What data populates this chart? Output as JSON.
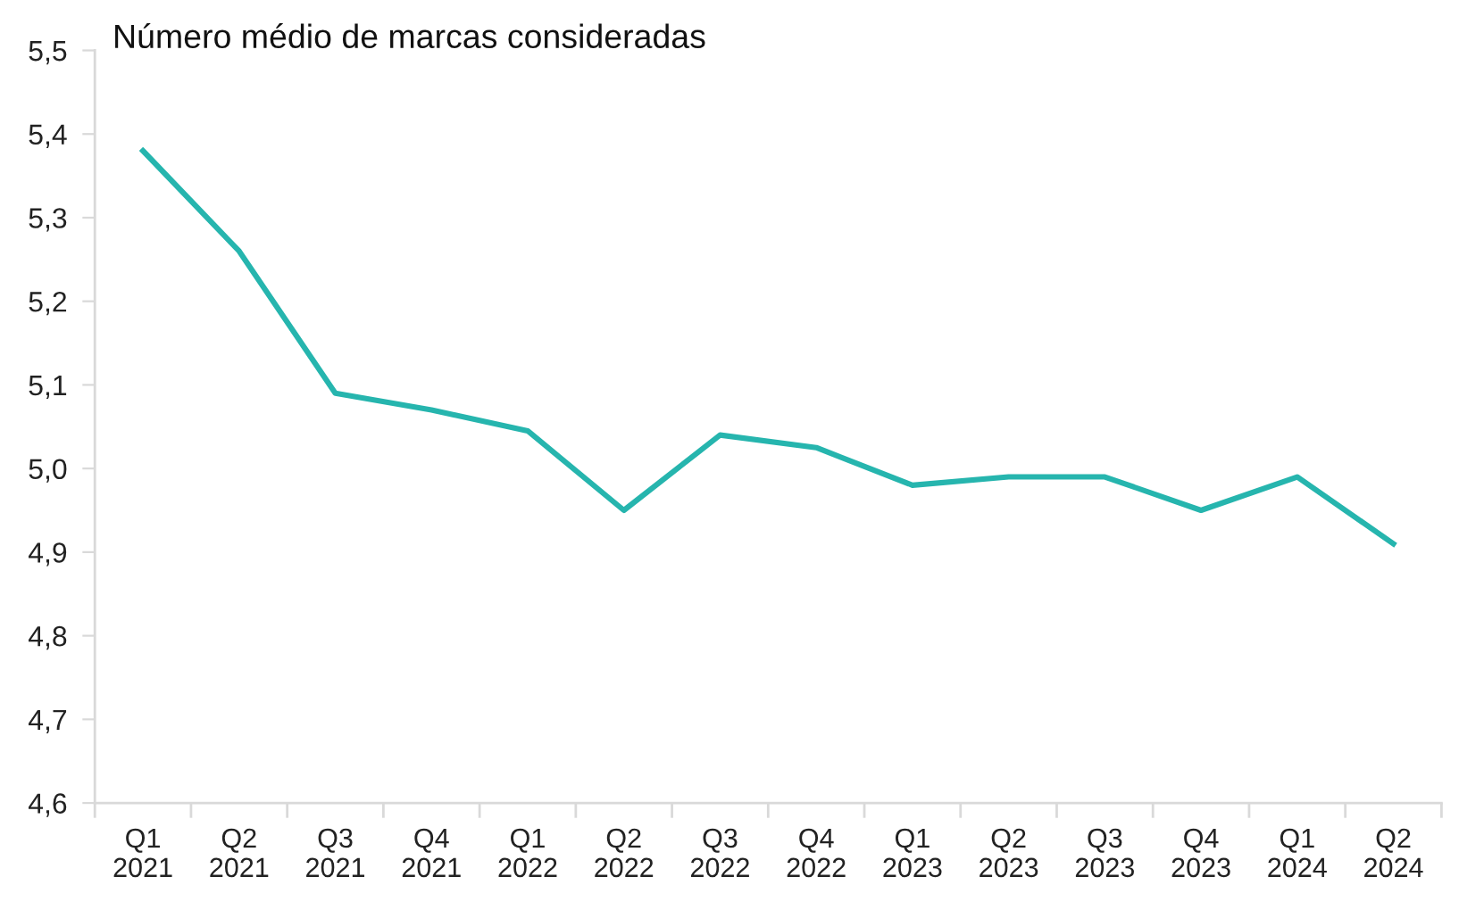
{
  "chart_data": {
    "type": "line",
    "title": "Número médio de marcas consideradas",
    "categories": [
      "Q1\n2021",
      "Q2\n2021",
      "Q3\n2021",
      "Q4\n2021",
      "Q1\n2022",
      "Q2\n2022",
      "Q3\n2022",
      "Q4\n2022",
      "Q1\n2023",
      "Q2\n2023",
      "Q3\n2023",
      "Q4\n2023",
      "Q1\n2024",
      "Q2\n2024"
    ],
    "series": [
      {
        "color": "#26b5ae",
        "values": [
          5.38,
          5.26,
          5.09,
          5.07,
          5.045,
          4.95,
          5.04,
          5.025,
          4.98,
          4.99,
          4.99,
          4.95,
          4.99,
          4.91
        ]
      }
    ],
    "ylim": [
      4.6,
      5.5
    ],
    "yticks": [
      {
        "value": 4.6,
        "label": "4,6"
      },
      {
        "value": 4.7,
        "label": "4,7"
      },
      {
        "value": 4.8,
        "label": "4,8"
      },
      {
        "value": 4.9,
        "label": "4,9"
      },
      {
        "value": 5.0,
        "label": "5,0"
      },
      {
        "value": 5.1,
        "label": "5,1"
      },
      {
        "value": 5.2,
        "label": "5,2"
      },
      {
        "value": 5.3,
        "label": "5,3"
      },
      {
        "value": 5.4,
        "label": "5,4"
      },
      {
        "value": 5.5,
        "label": "5,5"
      }
    ],
    "grid": false,
    "legend": false,
    "marker": "none",
    "line_style": "solid"
  }
}
